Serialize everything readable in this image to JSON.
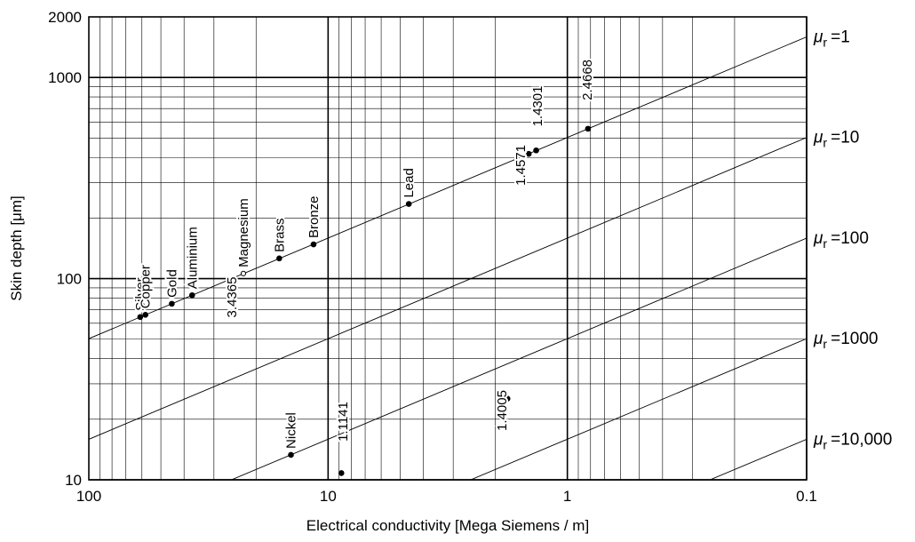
{
  "chart_data": {
    "type": "line",
    "xlabel": "Electrical conductivity [Mega Siemens / m]",
    "ylabel": "Skin depth [μm]",
    "x_scale": "log",
    "y_scale": "log",
    "x_reversed": true,
    "xlim": [
      100,
      0.1
    ],
    "ylim": [
      10,
      2000
    ],
    "x_ticks": [
      {
        "value": 100,
        "label": "100"
      },
      {
        "value": 10,
        "label": "10"
      },
      {
        "value": 1,
        "label": "1"
      },
      {
        "value": 0.1,
        "label": "0.1"
      }
    ],
    "y_ticks": [
      {
        "value": 2000,
        "label": "2000"
      },
      {
        "value": 1000,
        "label": "1000"
      },
      {
        "value": 100,
        "label": "100"
      },
      {
        "value": 10,
        "label": "10"
      }
    ],
    "grid": true,
    "series": [
      {
        "mu_label": "1",
        "x": [
          100,
          0.1
        ],
        "y": [
          50.3,
          1591
        ]
      },
      {
        "mu_label": "10",
        "x": [
          100,
          0.1
        ],
        "y": [
          15.9,
          503
        ]
      },
      {
        "mu_label": "100",
        "x": [
          32,
          0.1
        ],
        "y": [
          8.9,
          159
        ]
      },
      {
        "mu_label": "1000",
        "x": [
          3.2,
          0.1
        ],
        "y": [
          8.9,
          50.3
        ]
      },
      {
        "mu_label": "10,000",
        "x": [
          0.32,
          0.1
        ],
        "y": [
          8.9,
          15.9
        ]
      }
    ],
    "series_label_prefix": "μ",
    "series_label_sub": "r",
    "series_label_eq": "=",
    "points": [
      {
        "label": "Silver",
        "x": 61,
        "y": 64.4,
        "rot": true
      },
      {
        "label": "Copper",
        "x": 58,
        "y": 66.1,
        "rot": true
      },
      {
        "label": "Gold",
        "x": 45,
        "y": 75.0,
        "rot": true
      },
      {
        "label": "Aluminium",
        "x": 37,
        "y": 82.7,
        "rot": true
      },
      {
        "label": "Magnesium",
        "x": 22.6,
        "y": 106,
        "rot": true,
        "open": true
      },
      {
        "label": "Brass",
        "x": 16,
        "y": 126,
        "rot": true
      },
      {
        "label": "Bronze",
        "x": 11.5,
        "y": 148,
        "rot": true
      },
      {
        "label": "Lead",
        "x": 4.6,
        "y": 235,
        "rot": true
      },
      {
        "label": "Nickel",
        "x": 14.3,
        "y": 13.3,
        "rot": true
      },
      {
        "label": "",
        "x": 1.45,
        "y": 417
      },
      {
        "label": "",
        "x": 1.35,
        "y": 434
      },
      {
        "label": "",
        "x": 0.82,
        "y": 556
      },
      {
        "label": "",
        "x": 8.8,
        "y": 10.8
      },
      {
        "label": "",
        "x": 1.78,
        "y": 25.3
      }
    ],
    "annotations": [
      {
        "text": "3.4365",
        "x": 24.2,
        "y": 64
      },
      {
        "text": "1.4571",
        "x": 1.5,
        "y": 290
      },
      {
        "text": "1.4301",
        "x": 1.28,
        "y": 570
      },
      {
        "text": "2.4668",
        "x": 0.79,
        "y": 770
      },
      {
        "text": "1.1141",
        "x": 8.3,
        "y": 15.5
      },
      {
        "text": "1.4005",
        "x": 1.8,
        "y": 17.5
      }
    ]
  }
}
